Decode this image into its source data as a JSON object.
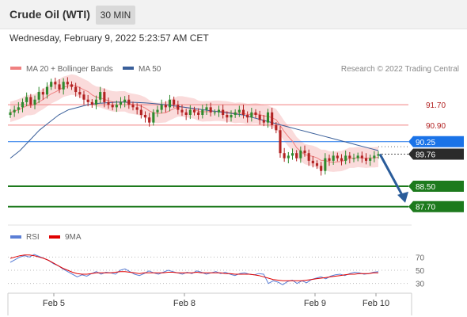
{
  "header": {
    "title": "Crude Oil (WTI)",
    "timeframe": "30 MIN"
  },
  "timestamp": "Wednesday, February 9, 2022 5:23:57 AM CET",
  "legend": {
    "bb_label": "MA 20 + Bollinger Bands",
    "bb_color": "#f08080",
    "ma50_label": "MA 50",
    "ma50_color": "#3a5f9a",
    "credit": "Research © 2022 Trading Central"
  },
  "rsi_legend": {
    "rsi_label": "RSI",
    "rsi_color": "#5b7fd6",
    "ma_label": "9MA",
    "ma_color": "#e00000"
  },
  "colors": {
    "up": "#2e8b2e",
    "down": "#b22222",
    "pivot": "#1a73e8",
    "support": "#1d7a1d",
    "resistance": "#f08080",
    "last": "#2b2b2b",
    "arrow": "#2a5c9a",
    "band": "#fadbdb"
  },
  "chart_data": [
    {
      "type": "candlestick",
      "x_ticks": [
        "Feb 5",
        "Feb 8",
        "Feb 9",
        "Feb 10"
      ],
      "ylim": [
        87.1,
        92.7
      ],
      "levels": [
        {
          "label": "91.70",
          "value": 91.7,
          "kind": "resistance"
        },
        {
          "label": "90.90",
          "value": 90.9,
          "kind": "resistance"
        },
        {
          "label": "90.25",
          "value": 90.25,
          "kind": "pivot"
        },
        {
          "label": "89.76",
          "value": 89.76,
          "kind": "last"
        },
        {
          "label": "88.50",
          "value": 88.5,
          "kind": "support"
        },
        {
          "label": "87.70",
          "value": 87.7,
          "kind": "support"
        }
      ],
      "series": [
        {
          "values": [
            91.4,
            91.5,
            91.6,
            91.8,
            92.0,
            91.7,
            91.9,
            92.2,
            92.1,
            92.4,
            92.6,
            92.5,
            92.3,
            92.6,
            92.5,
            92.4,
            92.2,
            92.1,
            91.9,
            91.8,
            91.7,
            91.9,
            92.2,
            91.8,
            91.7,
            91.6,
            91.7,
            91.8,
            91.9,
            91.7,
            91.6,
            91.5,
            91.3,
            91.2,
            91.0,
            91.4,
            91.5,
            91.7,
            91.6,
            91.9,
            91.7,
            91.5,
            91.4,
            91.3,
            91.5,
            91.4,
            91.3,
            91.5,
            91.6,
            91.4,
            91.4,
            91.5,
            91.3,
            91.2,
            91.3,
            91.4,
            91.5,
            91.3,
            91.2,
            91.4,
            91.3,
            91.1,
            91.0,
            91.4,
            90.9,
            90.7,
            89.8,
            89.6,
            89.7,
            89.8,
            89.6,
            89.9,
            89.8,
            89.5,
            89.4,
            89.3,
            89.1,
            89.6,
            89.5,
            89.7,
            89.6,
            89.5,
            89.7,
            89.6,
            89.6,
            89.7,
            89.6,
            89.5,
            89.6,
            89.7,
            89.76
          ]
        },
        {
          "name": "MA 50",
          "values": [
            89.6,
            89.9,
            90.3,
            90.7,
            91.0,
            91.3,
            91.5,
            91.6,
            91.7,
            91.75,
            91.78,
            91.8,
            91.8,
            91.79,
            91.77,
            91.74,
            91.7,
            91.65,
            91.6,
            91.55,
            91.5,
            91.45,
            91.4,
            91.35,
            91.3,
            91.2,
            91.1,
            91.0,
            90.9,
            90.8,
            90.7,
            90.6,
            90.5,
            90.4,
            90.3,
            90.2,
            90.1,
            90.0,
            89.9
          ]
        }
      ],
      "rsi": {
        "ylim": [
          20,
          80
        ],
        "ticks": [
          70,
          50,
          30
        ],
        "series": [
          {
            "name": "RSI",
            "values": [
              62,
              66,
              70,
              72,
              70,
              74,
              71,
              68,
              65,
              60,
              57,
              52,
              48,
              44,
              40,
              43,
              41,
              45,
              48,
              44,
              47,
              46,
              44,
              50,
              52,
              48,
              44,
              42,
              45,
              49,
              46,
              44,
              47,
              50,
              48,
              46,
              44,
              47,
              45,
              49,
              47,
              44,
              46,
              48,
              45,
              47,
              44,
              42,
              45,
              46,
              44,
              43,
              45,
              44,
              30,
              34,
              32,
              28,
              33,
              35,
              30,
              34,
              31,
              36,
              38,
              40,
              37,
              41,
              43,
              44,
              42,
              45,
              47,
              46,
              44,
              45,
              47,
              48
            ]
          },
          {
            "name": "9MA",
            "values": [
              68,
              70,
              72,
              73,
              73,
              72,
              70,
              68,
              65,
              61,
              57,
              53,
              50,
              47,
              45,
              44,
              44,
              45,
              46,
              46,
              46,
              46,
              47,
              48,
              48,
              47,
              46,
              45,
              46,
              46,
              46,
              46,
              46,
              47,
              47,
              46,
              46,
              46,
              46,
              47,
              46,
              46,
              46,
              46,
              46,
              45,
              45,
              44,
              44,
              44,
              44,
              43,
              42,
              40,
              38,
              36,
              35,
              34,
              34,
              34,
              34,
              34,
              35,
              36,
              37,
              38,
              39,
              40,
              41,
              42,
              43,
              44,
              44,
              45,
              45,
              45,
              46,
              46
            ]
          }
        ]
      }
    }
  ]
}
